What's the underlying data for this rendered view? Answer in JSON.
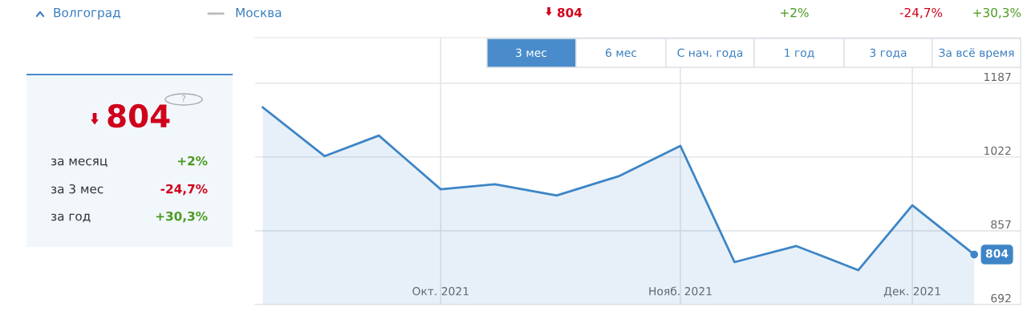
{
  "chart_data": {
    "type": "area",
    "x": [
      "2021-09-08",
      "2021-09-16",
      "2021-09-23",
      "2021-10-01",
      "2021-10-08",
      "2021-10-16",
      "2021-10-24",
      "2021-11-01",
      "2021-11-08",
      "2021-11-16",
      "2021-11-24",
      "2021-12-01",
      "2021-12-09"
    ],
    "series": [
      {
        "color": "#3d85c6",
        "values": [
          1133,
          1024,
          1070,
          950,
          961,
          936,
          979,
          1047,
          787,
          823,
          769,
          914,
          804
        ],
        "value_labels": [
          null,
          null,
          null,
          null,
          null,
          null,
          null,
          null,
          null,
          null,
          null,
          null,
          "804"
        ]
      }
    ],
    "xlim": [
      "2021-09-07",
      "2021-12-15"
    ],
    "xticks": [
      {
        "value": "2021-10-01",
        "label": "Окт. 2021"
      },
      {
        "value": "2021-11-01",
        "label": "Нояб. 2021"
      },
      {
        "value": "2021-12-01",
        "label": "Дек. 2021"
      }
    ],
    "ylim": [
      692,
      1289
    ],
    "yticks": [
      692,
      857,
      1022,
      1187
    ],
    "grid": true,
    "annotations": [
      "Волгоград",
      "Москва",
      "804",
      "+2%",
      "-24,7%",
      "+30,3%",
      "3 мес",
      "6 мес",
      "С нач. года",
      "1 год",
      "3 года",
      "За всё время",
      "804",
      "за месяц",
      "+2%",
      "за 3 мес",
      "-24,7%",
      "за год",
      "+30,3%",
      "?"
    ]
  }
}
